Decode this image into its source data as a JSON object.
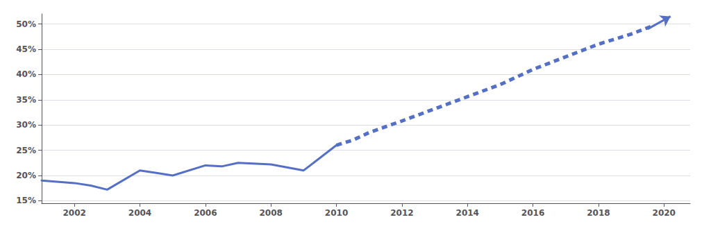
{
  "chart_data": {
    "type": "line",
    "color": "#5470c6",
    "series": [
      {
        "x": [
          2001,
          2002,
          2002.5,
          2003,
          2004,
          2004.5,
          2005,
          2006,
          2006.5,
          2007,
          2008,
          2009,
          2009.5,
          2010
        ],
        "values": [
          19.0,
          18.5,
          18.0,
          17.2,
          21.0,
          20.5,
          20.0,
          22.0,
          21.8,
          22.5,
          22.2,
          21.0,
          23.5,
          26.0
        ],
        "line_style": "solid"
      },
      {
        "x": [
          2010,
          2010.5,
          2011,
          2012,
          2013,
          2014,
          2015,
          2016,
          2017,
          2018,
          2019,
          2019.6
        ],
        "values": [
          26.0,
          27.0,
          28.5,
          30.8,
          33.2,
          35.6,
          38.0,
          41.0,
          43.5,
          46.0,
          48.0,
          49.5
        ],
        "line_style": "dashed"
      }
    ],
    "arrow": {
      "x": [
        2019.5,
        2020.2
      ],
      "y": [
        49.0,
        51.5
      ]
    },
    "xlim": [
      2001.0,
      2020.8
    ],
    "ylim": [
      14.5,
      52
    ],
    "xticks": [
      2002,
      2004,
      2006,
      2008,
      2010,
      2012,
      2014,
      2016,
      2018,
      2020
    ],
    "yticks": [
      {
        "value": 15,
        "label": "15%"
      },
      {
        "value": 20,
        "label": "20%"
      },
      {
        "value": 25,
        "label": "25%"
      },
      {
        "value": 30,
        "label": "30%"
      },
      {
        "value": 35,
        "label": "35%"
      },
      {
        "value": 40,
        "label": "40%"
      },
      {
        "value": 45,
        "label": "45%"
      },
      {
        "value": 50,
        "label": "50%"
      }
    ],
    "grid": true
  }
}
